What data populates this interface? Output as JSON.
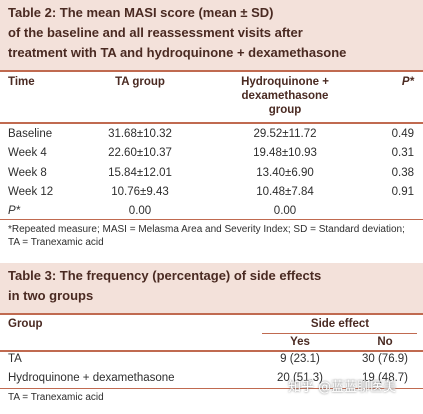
{
  "table2": {
    "title_lines": [
      "Table 2: The mean MASI score (mean ± SD)",
      "of the baseline and all reassessment visits after",
      "treatment with TA and hydroquinone + dexamethasone"
    ],
    "header": [
      "Time",
      "TA group",
      "Hydroquinone + dexamethasone group",
      "P*"
    ],
    "rows": [
      [
        "Baseline",
        "31.68±10.32",
        "29.52±11.72",
        "0.49"
      ],
      [
        "Week 4",
        "22.60±10.37",
        "19.48±10.93",
        "0.31"
      ],
      [
        "Week 8",
        "15.84±12.01",
        "13.40±6.90",
        "0.38"
      ],
      [
        "Week 12",
        "10.76±9.43",
        "10.48±7.84",
        "0.91"
      ],
      [
        "P*",
        "0.00",
        "0.00",
        ""
      ]
    ],
    "footnote": "*Repeated measure; MASI = Melasma Area and Severity Index; SD = Standard deviation; TA = Tranexamic acid"
  },
  "table3": {
    "title_lines": [
      "Table 3: The frequency (percentage) of side effects",
      "in two groups"
    ],
    "header": {
      "group": "Group",
      "side_effect": "Side effect",
      "yes": "Yes",
      "no": "No"
    },
    "rows": [
      [
        "TA",
        "9 (23.1)",
        "30 (76.9)"
      ],
      [
        "Hydroquinone + dexamethasone",
        "20 (51.3)",
        "19 (48.7)"
      ]
    ],
    "footnote": "TA = Tranexamic acid"
  },
  "watermark": "知乎 @蓝蓝聊医美"
}
